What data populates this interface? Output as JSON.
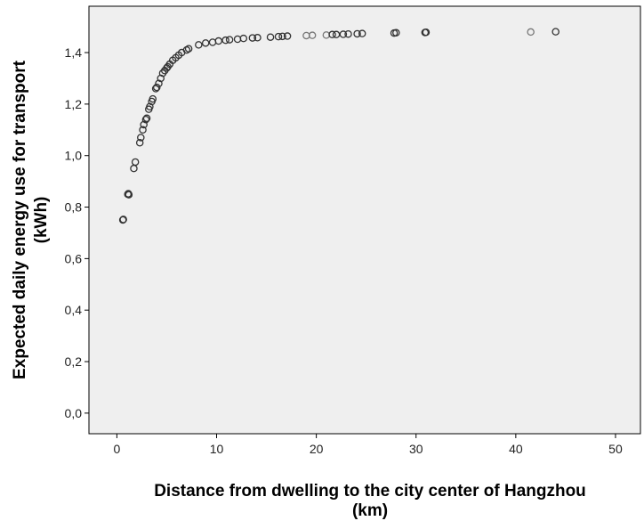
{
  "chart_data": {
    "type": "scatter",
    "xlabel_line1": "Distance from dwelling to the city center of Hangzhou",
    "xlabel_line2": "(km)",
    "ylabel_line1": "Expected daily energy use for transport",
    "ylabel_line2": "(kWh)",
    "xlim": [
      -2.8,
      52.5
    ],
    "ylim": [
      -0.08,
      1.58
    ],
    "x_ticks": [
      0,
      10,
      20,
      30,
      40,
      50
    ],
    "x_tick_labels": [
      "0",
      "10",
      "20",
      "30",
      "40",
      "50"
    ],
    "y_ticks": [
      0.0,
      0.2,
      0.4,
      0.6,
      0.8,
      1.0,
      1.2,
      1.4
    ],
    "y_tick_labels": [
      "0,0",
      "0,2",
      "0,4",
      "0,6",
      "0,8",
      "1,0",
      "1,2",
      "1,4"
    ],
    "grid": false,
    "colors": {
      "plot_background": "#efefef",
      "marker": "#333333",
      "marker_light": "#777777"
    },
    "points": [
      {
        "x": 0.6,
        "y": 0.75
      },
      {
        "x": 0.65,
        "y": 0.752
      },
      {
        "x": 1.1,
        "y": 0.85
      },
      {
        "x": 1.15,
        "y": 0.852
      },
      {
        "x": 1.2,
        "y": 0.848
      },
      {
        "x": 1.7,
        "y": 0.95
      },
      {
        "x": 1.85,
        "y": 0.975
      },
      {
        "x": 2.3,
        "y": 1.05
      },
      {
        "x": 2.4,
        "y": 1.07
      },
      {
        "x": 2.6,
        "y": 1.1
      },
      {
        "x": 2.7,
        "y": 1.12
      },
      {
        "x": 2.9,
        "y": 1.14
      },
      {
        "x": 3.0,
        "y": 1.145
      },
      {
        "x": 3.2,
        "y": 1.18
      },
      {
        "x": 3.3,
        "y": 1.19
      },
      {
        "x": 3.5,
        "y": 1.21
      },
      {
        "x": 3.6,
        "y": 1.22
      },
      {
        "x": 3.9,
        "y": 1.26
      },
      {
        "x": 4.0,
        "y": 1.265
      },
      {
        "x": 4.2,
        "y": 1.28
      },
      {
        "x": 4.4,
        "y": 1.3
      },
      {
        "x": 4.6,
        "y": 1.32
      },
      {
        "x": 4.8,
        "y": 1.33
      },
      {
        "x": 5.0,
        "y": 1.34
      },
      {
        "x": 5.1,
        "y": 1.345
      },
      {
        "x": 5.3,
        "y": 1.355
      },
      {
        "x": 5.6,
        "y": 1.37
      },
      {
        "x": 5.9,
        "y": 1.38
      },
      {
        "x": 6.2,
        "y": 1.39
      },
      {
        "x": 6.5,
        "y": 1.4
      },
      {
        "x": 7.0,
        "y": 1.41
      },
      {
        "x": 7.2,
        "y": 1.415
      },
      {
        "x": 8.2,
        "y": 1.43
      },
      {
        "x": 8.9,
        "y": 1.437
      },
      {
        "x": 9.6,
        "y": 1.44
      },
      {
        "x": 10.2,
        "y": 1.445
      },
      {
        "x": 10.9,
        "y": 1.448
      },
      {
        "x": 11.3,
        "y": 1.45
      },
      {
        "x": 12.1,
        "y": 1.452
      },
      {
        "x": 12.7,
        "y": 1.455
      },
      {
        "x": 13.6,
        "y": 1.457
      },
      {
        "x": 14.1,
        "y": 1.458
      },
      {
        "x": 15.4,
        "y": 1.46
      },
      {
        "x": 16.2,
        "y": 1.462
      },
      {
        "x": 16.6,
        "y": 1.463
      },
      {
        "x": 17.1,
        "y": 1.464
      },
      {
        "x": 19.0,
        "y": 1.466,
        "light": true
      },
      {
        "x": 19.6,
        "y": 1.467,
        "light": true
      },
      {
        "x": 21.0,
        "y": 1.468,
        "light": true
      },
      {
        "x": 21.6,
        "y": 1.47
      },
      {
        "x": 22.0,
        "y": 1.47
      },
      {
        "x": 22.7,
        "y": 1.471
      },
      {
        "x": 23.2,
        "y": 1.472
      },
      {
        "x": 24.1,
        "y": 1.473
      },
      {
        "x": 24.6,
        "y": 1.474
      },
      {
        "x": 27.8,
        "y": 1.476
      },
      {
        "x": 28.0,
        "y": 1.477
      },
      {
        "x": 30.9,
        "y": 1.478
      },
      {
        "x": 31.0,
        "y": 1.479
      },
      {
        "x": 41.5,
        "y": 1.48,
        "light": true
      },
      {
        "x": 44.0,
        "y": 1.481
      }
    ]
  }
}
